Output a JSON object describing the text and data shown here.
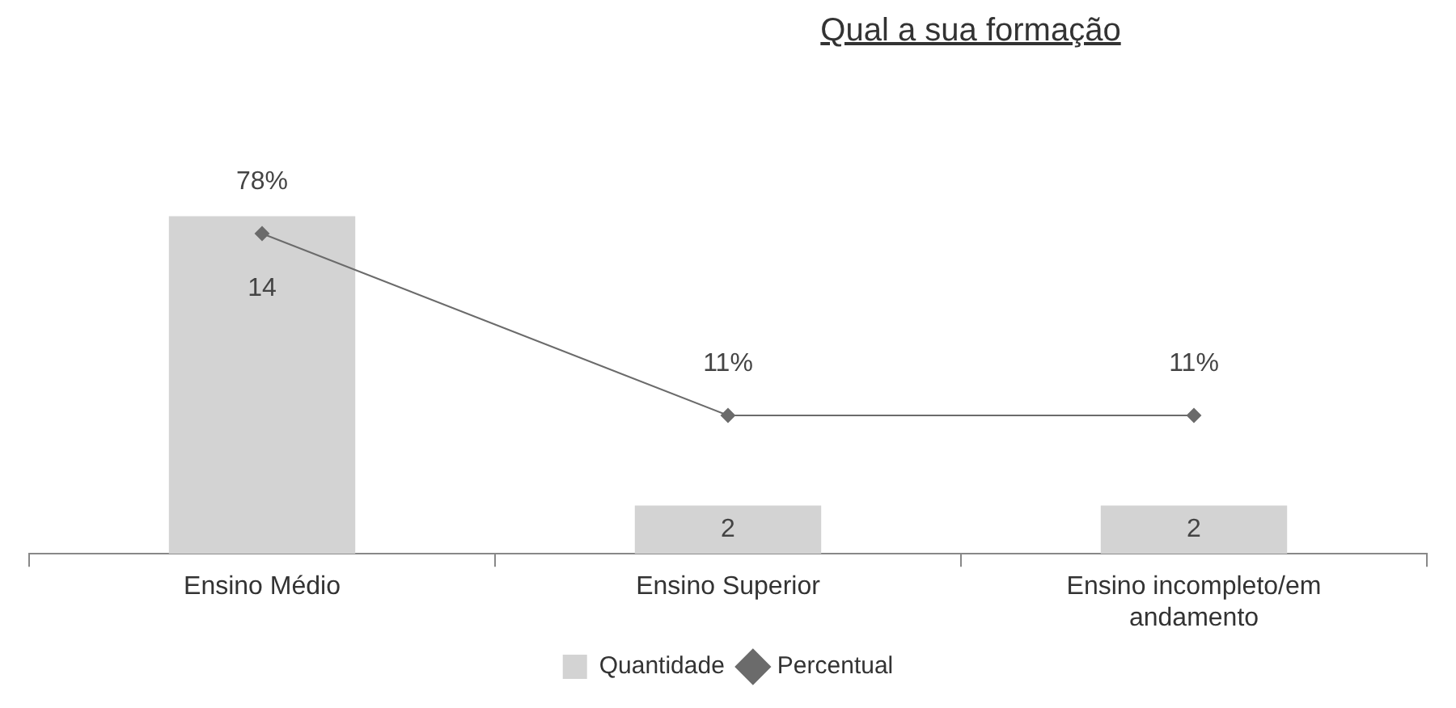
{
  "chart_data": {
    "type": "bar",
    "title": "Qual a sua formação",
    "categories": [
      "Ensino Médio",
      "Ensino Superior",
      "Ensino incompleto/em andamento"
    ],
    "series": [
      {
        "name": "Quantidade",
        "color": "#d3d3d3",
        "values": [
          14,
          2,
          2
        ]
      },
      {
        "name": "Percentual",
        "type": "line",
        "axis": "y2",
        "color": "#6b6b6b",
        "marker": "diamond",
        "values": [
          78,
          11,
          11
        ],
        "value_labels": [
          "78%",
          "11%",
          "11%"
        ]
      }
    ],
    "data_labels": true,
    "grid": false,
    "legend": "bottom"
  }
}
